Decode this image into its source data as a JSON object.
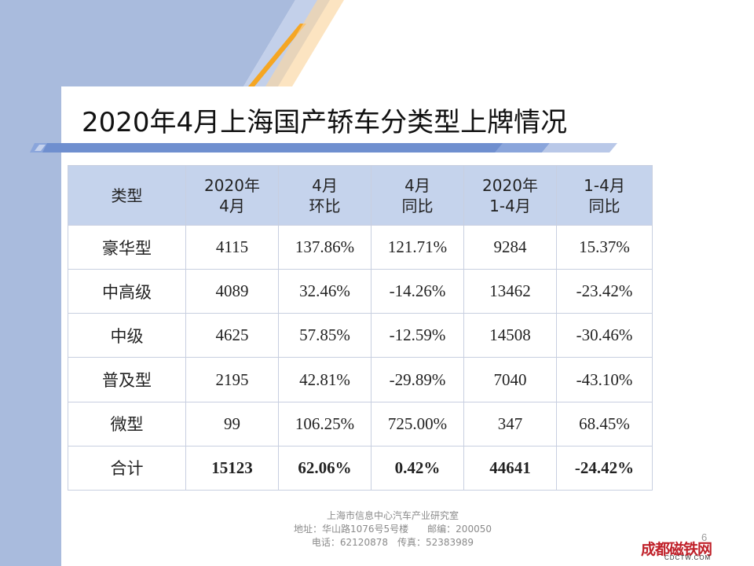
{
  "slide": {
    "title": "2020年4月上海国产轿车分类型上牌情况",
    "page_number": "6"
  },
  "table": {
    "headers": [
      [
        "类型"
      ],
      [
        "2020年",
        "4月"
      ],
      [
        "4月",
        "环比"
      ],
      [
        "4月",
        "同比"
      ],
      [
        "2020年",
        "1-4月"
      ],
      [
        "1-4月",
        "同比"
      ]
    ],
    "rows": [
      [
        "豪华型",
        "4115",
        "137.86%",
        "121.71%",
        "9284",
        "15.37%"
      ],
      [
        "中高级",
        "4089",
        "32.46%",
        "-14.26%",
        "13462",
        "-23.42%"
      ],
      [
        "中级",
        "4625",
        "57.85%",
        "-12.59%",
        "14508",
        "-30.46%"
      ],
      [
        "普及型",
        "2195",
        "42.81%",
        "-29.89%",
        "7040",
        "-43.10%"
      ],
      [
        "微型",
        "99",
        "106.25%",
        "725.00%",
        "347",
        "68.45%"
      ],
      [
        "合计",
        "15123",
        "62.06%",
        "0.42%",
        "44641",
        "-24.42%"
      ]
    ]
  },
  "footer": {
    "line1": "上海市信息中心汽车产业研究室",
    "line2": "地址：华山路1076号5号楼　　邮编：200050",
    "line3": "电话：62120878　传真：52383989"
  },
  "logo": {
    "main": "成都磁铁网",
    "sub": "CDCTW.COM"
  },
  "colors": {
    "left_band": "#a9bbdd",
    "header_fill": "#c5d3ec",
    "accent_orange": "#f5a623",
    "underline_blue": "#6f8fcf"
  }
}
